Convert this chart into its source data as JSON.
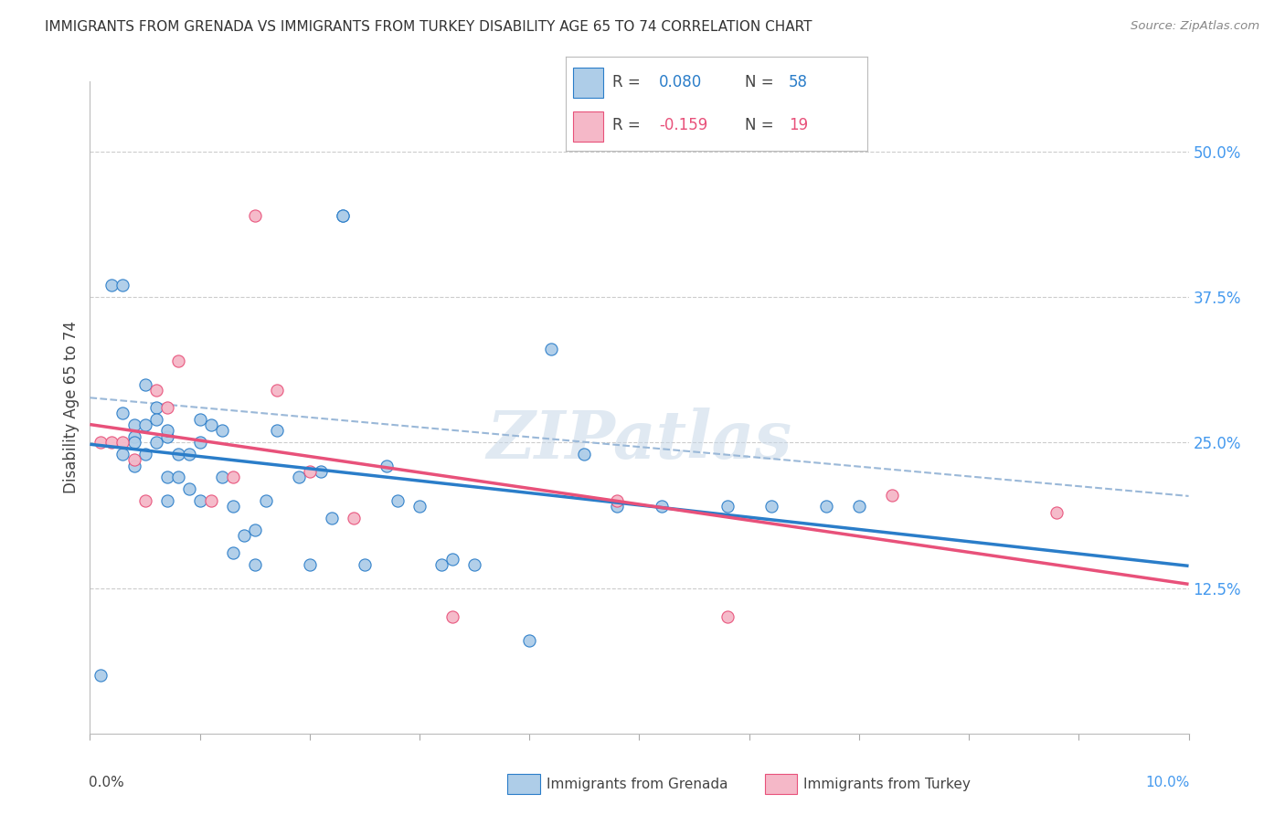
{
  "title": "IMMIGRANTS FROM GRENADA VS IMMIGRANTS FROM TURKEY DISABILITY AGE 65 TO 74 CORRELATION CHART",
  "source": "Source: ZipAtlas.com",
  "ylabel": "Disability Age 65 to 74",
  "right_yticks": [
    "50.0%",
    "37.5%",
    "25.0%",
    "12.5%"
  ],
  "right_ytick_vals": [
    0.5,
    0.375,
    0.25,
    0.125
  ],
  "grenada_R": 0.08,
  "grenada_N": 58,
  "turkey_R": -0.159,
  "turkey_N": 19,
  "grenada_color": "#aecde8",
  "turkey_color": "#f5b8c8",
  "grenada_line_color": "#2a7dc9",
  "turkey_line_color": "#e8517a",
  "trend_line_color": "#9ab8d8",
  "background_color": "#ffffff",
  "xlim": [
    0.0,
    0.1
  ],
  "ylim": [
    0.0,
    0.56
  ],
  "grenada_x": [
    0.001,
    0.002,
    0.003,
    0.003,
    0.003,
    0.004,
    0.004,
    0.004,
    0.004,
    0.005,
    0.005,
    0.005,
    0.006,
    0.006,
    0.006,
    0.007,
    0.007,
    0.007,
    0.007,
    0.008,
    0.008,
    0.009,
    0.009,
    0.01,
    0.01,
    0.01,
    0.011,
    0.012,
    0.012,
    0.013,
    0.013,
    0.014,
    0.015,
    0.015,
    0.016,
    0.017,
    0.019,
    0.02,
    0.021,
    0.022,
    0.023,
    0.023,
    0.025,
    0.027,
    0.028,
    0.03,
    0.032,
    0.033,
    0.035,
    0.04,
    0.042,
    0.045,
    0.048,
    0.052,
    0.058,
    0.062,
    0.067,
    0.07
  ],
  "grenada_y": [
    0.05,
    0.385,
    0.385,
    0.275,
    0.24,
    0.265,
    0.255,
    0.25,
    0.23,
    0.3,
    0.265,
    0.24,
    0.28,
    0.27,
    0.25,
    0.255,
    0.26,
    0.22,
    0.2,
    0.24,
    0.22,
    0.24,
    0.21,
    0.27,
    0.25,
    0.2,
    0.265,
    0.26,
    0.22,
    0.195,
    0.155,
    0.17,
    0.175,
    0.145,
    0.2,
    0.26,
    0.22,
    0.145,
    0.225,
    0.185,
    0.445,
    0.445,
    0.145,
    0.23,
    0.2,
    0.195,
    0.145,
    0.15,
    0.145,
    0.08,
    0.33,
    0.24,
    0.195,
    0.195,
    0.195,
    0.195,
    0.195,
    0.195
  ],
  "turkey_x": [
    0.001,
    0.002,
    0.003,
    0.004,
    0.005,
    0.006,
    0.007,
    0.008,
    0.011,
    0.013,
    0.015,
    0.017,
    0.02,
    0.024,
    0.033,
    0.048,
    0.058,
    0.073,
    0.088
  ],
  "turkey_y": [
    0.25,
    0.25,
    0.25,
    0.235,
    0.2,
    0.295,
    0.28,
    0.32,
    0.2,
    0.22,
    0.445,
    0.295,
    0.225,
    0.185,
    0.1,
    0.2,
    0.1,
    0.205,
    0.19
  ],
  "watermark": "ZIPatlas"
}
